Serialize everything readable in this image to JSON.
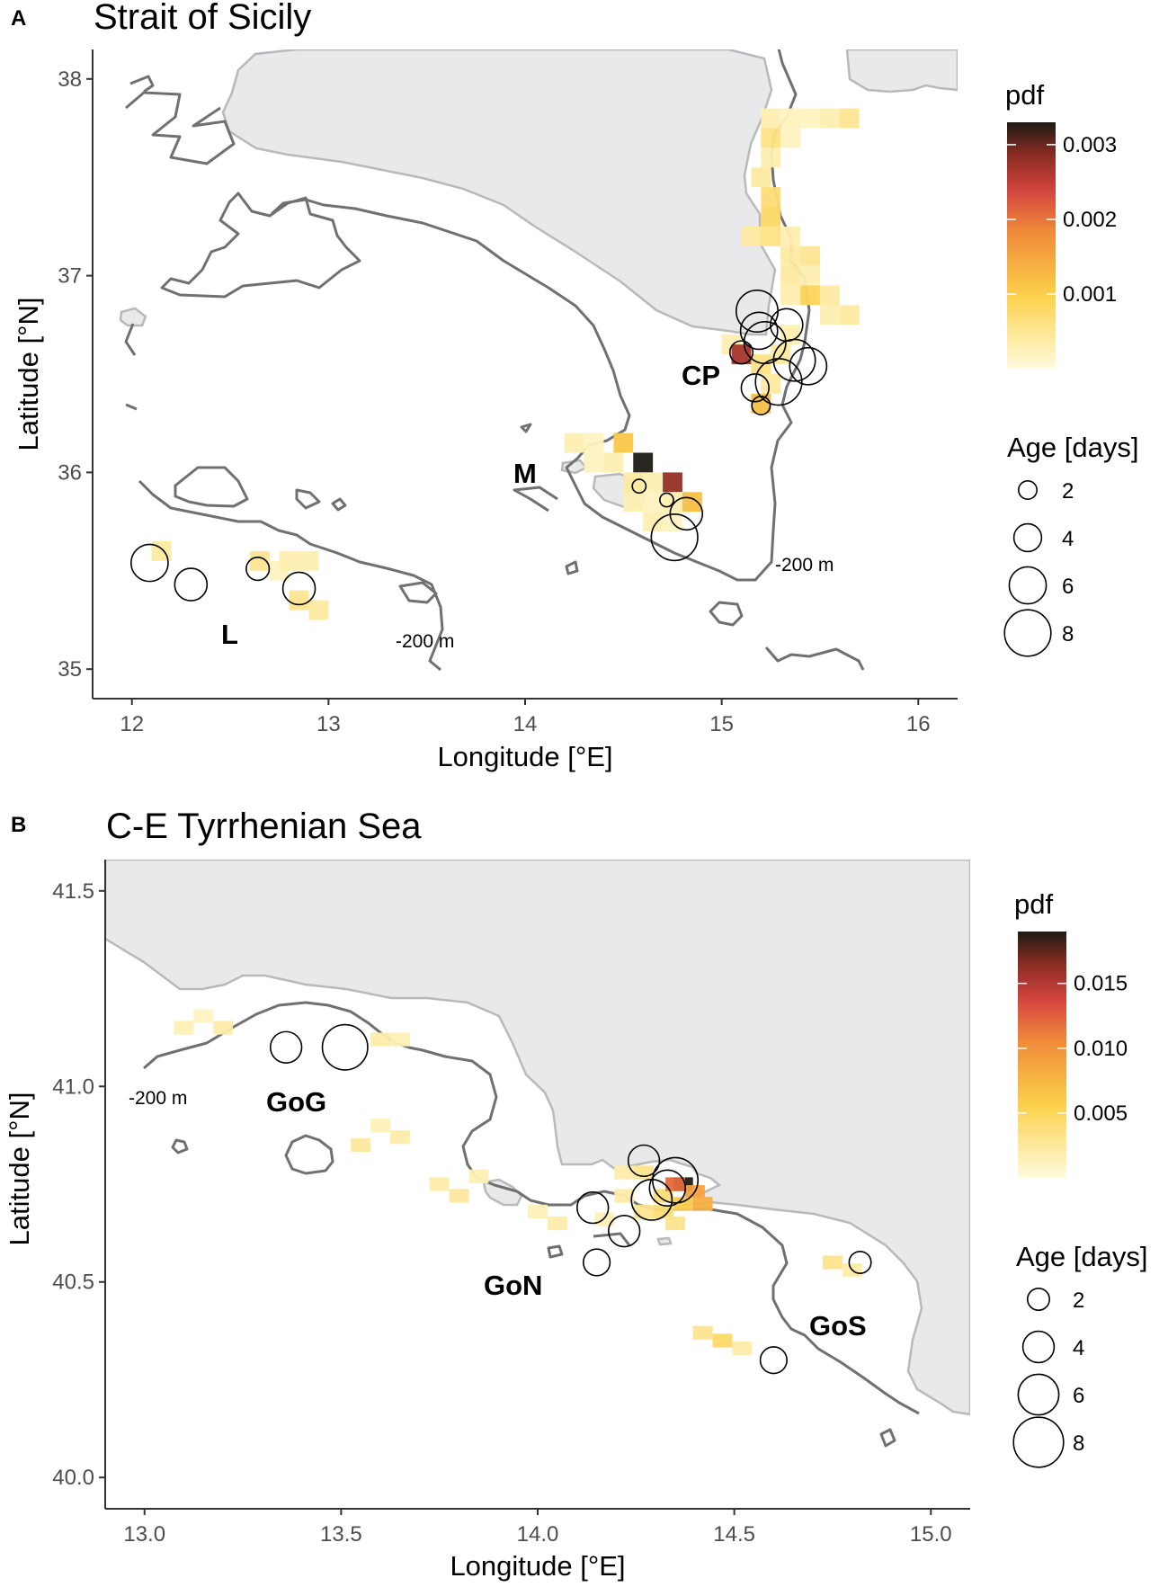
{
  "colors": {
    "land": "#e8e9eb",
    "coast_outline": "#b9b9b9",
    "contour": "#707070",
    "pdf_low": "#fffbdc",
    "pdf_mid": "#fbd04a",
    "pdf_orange": "#f08c3a",
    "pdf_red": "#d4453f",
    "pdf_dark": "#8a2c22",
    "pdf_high": "#1c1b14"
  },
  "panels": [
    {
      "letter": "A",
      "title": "Strait of Sicily",
      "xlabel": "Longitude [°E]",
      "ylabel": "Latitude [°N]",
      "x_ticks": [
        "12",
        "13",
        "14",
        "15",
        "16"
      ],
      "y_ticks": [
        "35",
        "36",
        "37",
        "38"
      ],
      "xlim": [
        11.8,
        16.2
      ],
      "ylim": [
        34.85,
        38.15
      ],
      "pdf_legend": {
        "title": "pdf",
        "labels": [
          "0.003",
          "0.002",
          "0.001"
        ],
        "values": [
          0.003,
          0.002,
          0.001
        ],
        "max": 0.0033
      },
      "age_legend": {
        "title": "Age [days]",
        "labels": [
          "2",
          "4",
          "6",
          "8"
        ]
      },
      "region_labels": [
        "CP",
        "M",
        "L"
      ],
      "contour_labels": [
        "-200 m",
        "-200 m"
      ],
      "eggs": [
        {
          "lon": 15.18,
          "lat": 36.82,
          "age": 7
        },
        {
          "lon": 15.19,
          "lat": 36.72,
          "age": 6
        },
        {
          "lon": 15.22,
          "lat": 36.66,
          "age": 7
        },
        {
          "lon": 15.33,
          "lat": 36.75,
          "age": 5
        },
        {
          "lon": 15.1,
          "lat": 36.61,
          "age": 3
        },
        {
          "lon": 15.37,
          "lat": 36.57,
          "age": 7
        },
        {
          "lon": 15.44,
          "lat": 36.54,
          "age": 6
        },
        {
          "lon": 15.29,
          "lat": 36.46,
          "age": 8
        },
        {
          "lon": 15.17,
          "lat": 36.43,
          "age": 4
        },
        {
          "lon": 15.2,
          "lat": 36.34,
          "age": 2
        },
        {
          "lon": 14.82,
          "lat": 35.79,
          "age": 5
        },
        {
          "lon": 14.76,
          "lat": 35.67,
          "age": 8
        },
        {
          "lon": 14.58,
          "lat": 35.93,
          "age": 1
        },
        {
          "lon": 14.72,
          "lat": 35.86,
          "age": 1
        },
        {
          "lon": 12.09,
          "lat": 35.54,
          "age": 6
        },
        {
          "lon": 12.3,
          "lat": 35.43,
          "age": 5
        },
        {
          "lon": 12.64,
          "lat": 35.51,
          "age": 3
        },
        {
          "lon": 12.85,
          "lat": 35.41,
          "age": 5
        }
      ],
      "pdf_cells": [
        {
          "lon": 15.25,
          "lat": 37.8,
          "v": 0.0003
        },
        {
          "lon": 15.35,
          "lat": 37.8,
          "v": 0.0002
        },
        {
          "lon": 15.45,
          "lat": 37.8,
          "v": 0.0002
        },
        {
          "lon": 15.55,
          "lat": 37.8,
          "v": 0.0003
        },
        {
          "lon": 15.65,
          "lat": 37.8,
          "v": 0.0005
        },
        {
          "lon": 15.25,
          "lat": 37.7,
          "v": 0.0006
        },
        {
          "lon": 15.35,
          "lat": 37.7,
          "v": 0.0002
        },
        {
          "lon": 15.25,
          "lat": 37.6,
          "v": 0.0003
        },
        {
          "lon": 15.2,
          "lat": 37.5,
          "v": 0.0004
        },
        {
          "lon": 15.25,
          "lat": 37.4,
          "v": 0.0007
        },
        {
          "lon": 15.25,
          "lat": 37.3,
          "v": 0.0008
        },
        {
          "lon": 15.15,
          "lat": 37.2,
          "v": 0.0004
        },
        {
          "lon": 15.25,
          "lat": 37.2,
          "v": 0.0006
        },
        {
          "lon": 15.35,
          "lat": 37.2,
          "v": 0.0003
        },
        {
          "lon": 15.35,
          "lat": 37.1,
          "v": 0.0004
        },
        {
          "lon": 15.45,
          "lat": 37.1,
          "v": 0.0005
        },
        {
          "lon": 15.35,
          "lat": 37.0,
          "v": 0.0004
        },
        {
          "lon": 15.45,
          "lat": 37.0,
          "v": 0.0003
        },
        {
          "lon": 15.45,
          "lat": 36.9,
          "v": 0.0009
        },
        {
          "lon": 15.55,
          "lat": 36.9,
          "v": 0.0004
        },
        {
          "lon": 15.55,
          "lat": 36.8,
          "v": 0.0003
        },
        {
          "lon": 15.65,
          "lat": 36.8,
          "v": 0.0004
        },
        {
          "lon": 15.35,
          "lat": 36.9,
          "v": 0.0003
        },
        {
          "lon": 15.05,
          "lat": 36.65,
          "v": 0.0003
        },
        {
          "lon": 15.1,
          "lat": 36.6,
          "v": 0.0027
        },
        {
          "lon": 15.2,
          "lat": 36.55,
          "v": 0.0006
        },
        {
          "lon": 15.3,
          "lat": 36.6,
          "v": 0.0004
        },
        {
          "lon": 15.25,
          "lat": 36.45,
          "v": 0.0004
        },
        {
          "lon": 15.2,
          "lat": 36.35,
          "v": 0.0012
        },
        {
          "lon": 15.35,
          "lat": 36.7,
          "v": 0.0003
        },
        {
          "lon": 14.25,
          "lat": 36.15,
          "v": 0.0003
        },
        {
          "lon": 14.35,
          "lat": 36.15,
          "v": 0.0002
        },
        {
          "lon": 14.5,
          "lat": 36.15,
          "v": 0.0011
        },
        {
          "lon": 14.6,
          "lat": 36.05,
          "v": 0.0033
        },
        {
          "lon": 14.75,
          "lat": 35.95,
          "v": 0.0028
        },
        {
          "lon": 14.45,
          "lat": 36.05,
          "v": 0.0003
        },
        {
          "lon": 14.35,
          "lat": 36.05,
          "v": 0.0002
        },
        {
          "lon": 14.55,
          "lat": 35.95,
          "v": 0.0004
        },
        {
          "lon": 14.65,
          "lat": 35.95,
          "v": 0.0003
        },
        {
          "lon": 14.55,
          "lat": 35.85,
          "v": 0.0003
        },
        {
          "lon": 14.65,
          "lat": 35.85,
          "v": 0.0002
        },
        {
          "lon": 14.85,
          "lat": 35.85,
          "v": 0.0012
        },
        {
          "lon": 14.75,
          "lat": 35.85,
          "v": 0.0003
        },
        {
          "lon": 14.65,
          "lat": 35.75,
          "v": 0.0003
        },
        {
          "lon": 14.75,
          "lat": 35.75,
          "v": 0.0002
        },
        {
          "lon": 12.15,
          "lat": 35.6,
          "v": 0.0004
        },
        {
          "lon": 12.65,
          "lat": 35.55,
          "v": 0.0005
        },
        {
          "lon": 12.75,
          "lat": 35.5,
          "v": 0.0002
        },
        {
          "lon": 12.8,
          "lat": 35.55,
          "v": 0.0003
        },
        {
          "lon": 12.9,
          "lat": 35.55,
          "v": 0.0003
        },
        {
          "lon": 12.85,
          "lat": 35.35,
          "v": 0.0005
        },
        {
          "lon": 12.95,
          "lat": 35.3,
          "v": 0.0004
        }
      ]
    },
    {
      "letter": "B",
      "title": "C-E Tyrrhenian Sea",
      "xlabel": "Longitude [°E]",
      "ylabel": "Latitude [°N]",
      "x_ticks": [
        "13.0",
        "13.5",
        "14.0",
        "14.5",
        "15.0"
      ],
      "y_ticks": [
        "40.0",
        "40.5",
        "41.0",
        "41.5"
      ],
      "xlim": [
        12.9,
        15.1
      ],
      "ylim": [
        39.92,
        41.58
      ],
      "pdf_legend": {
        "title": "pdf",
        "labels": [
          "0.015",
          "0.010",
          "0.005"
        ],
        "values": [
          0.015,
          0.01,
          0.005
        ],
        "max": 0.019
      },
      "age_legend": {
        "title": "Age [days]",
        "labels": [
          "2",
          "4",
          "6",
          "8"
        ]
      },
      "region_labels": [
        "GoG",
        "GoN",
        "GoS"
      ],
      "contour_labels": [
        "-200 m"
      ],
      "eggs": [
        {
          "lon": 13.36,
          "lat": 41.1,
          "age": 4
        },
        {
          "lon": 13.51,
          "lat": 41.1,
          "age": 7
        },
        {
          "lon": 14.27,
          "lat": 40.81,
          "age": 4
        },
        {
          "lon": 14.35,
          "lat": 40.76,
          "age": 7
        },
        {
          "lon": 14.33,
          "lat": 40.74,
          "age": 5
        },
        {
          "lon": 14.29,
          "lat": 40.71,
          "age": 6
        },
        {
          "lon": 14.14,
          "lat": 40.69,
          "age": 4
        },
        {
          "lon": 14.22,
          "lat": 40.63,
          "age": 4
        },
        {
          "lon": 14.15,
          "lat": 40.55,
          "age": 3
        },
        {
          "lon": 14.82,
          "lat": 40.55,
          "age": 2
        },
        {
          "lon": 14.6,
          "lat": 40.3,
          "age": 3
        }
      ],
      "pdf_cells": [
        {
          "lon": 13.1,
          "lat": 41.15,
          "v": 0.0015
        },
        {
          "lon": 13.2,
          "lat": 41.15,
          "v": 0.002
        },
        {
          "lon": 13.15,
          "lat": 41.18,
          "v": 0.001
        },
        {
          "lon": 13.6,
          "lat": 41.12,
          "v": 0.002
        },
        {
          "lon": 13.65,
          "lat": 41.12,
          "v": 0.0015
        },
        {
          "lon": 13.55,
          "lat": 40.85,
          "v": 0.0025
        },
        {
          "lon": 13.65,
          "lat": 40.87,
          "v": 0.002
        },
        {
          "lon": 13.6,
          "lat": 40.9,
          "v": 0.0015
        },
        {
          "lon": 13.75,
          "lat": 40.75,
          "v": 0.002
        },
        {
          "lon": 13.8,
          "lat": 40.72,
          "v": 0.0025
        },
        {
          "lon": 13.85,
          "lat": 40.77,
          "v": 0.0015
        },
        {
          "lon": 14.0,
          "lat": 40.68,
          "v": 0.0015
        },
        {
          "lon": 14.05,
          "lat": 40.65,
          "v": 0.002
        },
        {
          "lon": 14.22,
          "lat": 40.78,
          "v": 0.002
        },
        {
          "lon": 14.27,
          "lat": 40.78,
          "v": 0.003
        },
        {
          "lon": 14.32,
          "lat": 40.72,
          "v": 0.004
        },
        {
          "lon": 14.37,
          "lat": 40.75,
          "v": 0.019
        },
        {
          "lon": 14.35,
          "lat": 40.75,
          "v": 0.012
        },
        {
          "lon": 14.4,
          "lat": 40.73,
          "v": 0.009
        },
        {
          "lon": 14.42,
          "lat": 40.7,
          "v": 0.008
        },
        {
          "lon": 14.37,
          "lat": 40.7,
          "v": 0.006
        },
        {
          "lon": 14.32,
          "lat": 40.68,
          "v": 0.004
        },
        {
          "lon": 14.27,
          "lat": 40.68,
          "v": 0.003
        },
        {
          "lon": 14.35,
          "lat": 40.65,
          "v": 0.003
        },
        {
          "lon": 14.22,
          "lat": 40.72,
          "v": 0.002
        },
        {
          "lon": 14.17,
          "lat": 40.66,
          "v": 0.0015
        },
        {
          "lon": 14.75,
          "lat": 40.55,
          "v": 0.003
        },
        {
          "lon": 14.8,
          "lat": 40.53,
          "v": 0.002
        },
        {
          "lon": 14.42,
          "lat": 40.37,
          "v": 0.003
        },
        {
          "lon": 14.47,
          "lat": 40.35,
          "v": 0.0045
        },
        {
          "lon": 14.52,
          "lat": 40.33,
          "v": 0.002
        }
      ]
    }
  ]
}
